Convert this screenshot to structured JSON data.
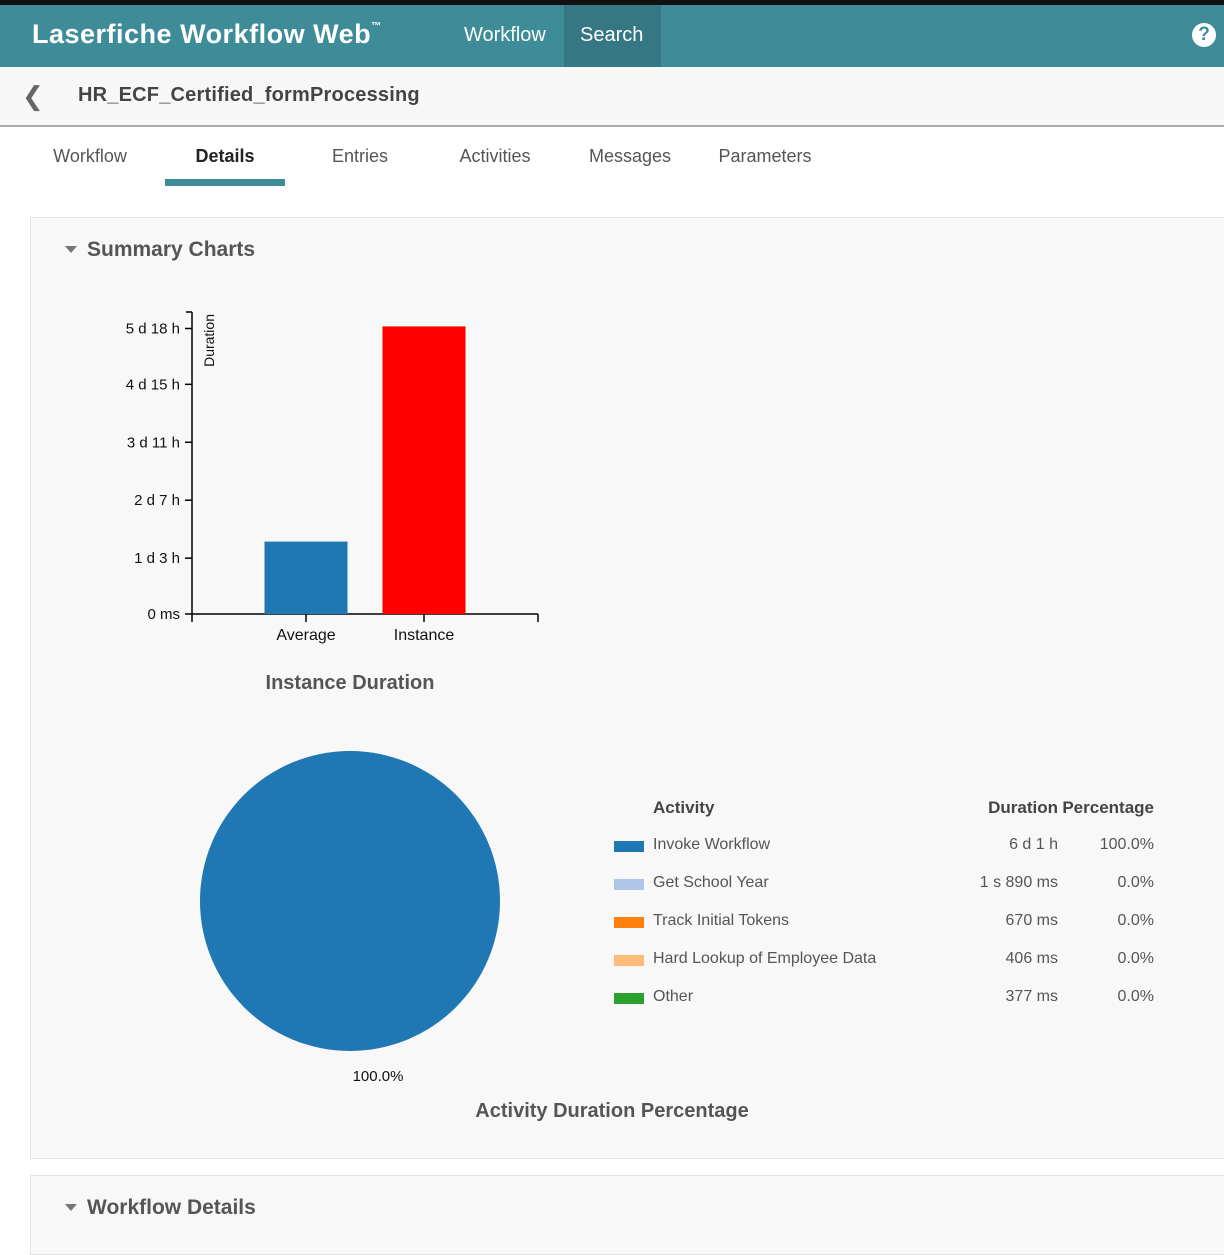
{
  "app": {
    "brand": "Laserfiche Workflow Web",
    "brand_mark": "™",
    "nav": [
      {
        "label": "Workflow",
        "active": false
      },
      {
        "label": "Search",
        "active": true
      }
    ],
    "help_glyph": "?",
    "help_icon": "help-circle-icon"
  },
  "header": {
    "back_glyph": "❮",
    "back_icon": "back-chevron-icon",
    "title": "HR_ECF_Certified_formProcessing"
  },
  "tabs": [
    {
      "label": "Workflow",
      "active": false
    },
    {
      "label": "Details",
      "active": true
    },
    {
      "label": "Entries",
      "active": false
    },
    {
      "label": "Activities",
      "active": false
    },
    {
      "label": "Messages",
      "active": false
    },
    {
      "label": "Parameters",
      "active": false
    }
  ],
  "summary": {
    "title": "Summary Charts",
    "expanded": true
  },
  "workflow_details": {
    "title": "Workflow Details",
    "expanded": true
  },
  "colors": {
    "accent": "#3f8c99",
    "bar_average": "#1f77b4",
    "bar_instance": "#ff0000"
  },
  "chart_data": [
    {
      "type": "bar",
      "title": "Instance Duration",
      "ylabel": "Duration",
      "categories": [
        "Average",
        "Instance"
      ],
      "values_hours": [
        35,
        139
      ],
      "ylim_hours": [
        0,
        145
      ],
      "yticks_hours": [
        0,
        27,
        55,
        83,
        111,
        138
      ],
      "ytick_labels": [
        "0 ms",
        "1 d 3 h",
        "2 d 7 h",
        "3 d 11 h",
        "4 d 15 h",
        "5 d 18 h"
      ],
      "colors": [
        "#1f77b4",
        "#ff0000"
      ],
      "grid": false
    },
    {
      "type": "pie",
      "title": "Activity Duration Percentage",
      "slice_label": "100.0%",
      "legend_headers": {
        "activity": "Activity",
        "duration": "Duration",
        "percentage": "Percentage"
      },
      "legend_placement": "right",
      "slices": [
        {
          "label": "Invoke Workflow",
          "duration": "6 d 1 h",
          "percentage": "100.0%",
          "value": 100.0,
          "color": "#1f77b4"
        },
        {
          "label": "Get School Year",
          "duration": "1 s 890 ms",
          "percentage": "0.0%",
          "value": 0.0,
          "color": "#aec7e8"
        },
        {
          "label": "Track Initial Tokens",
          "duration": "670 ms",
          "percentage": "0.0%",
          "value": 0.0,
          "color": "#ff7f0e"
        },
        {
          "label": "Hard Lookup of Employee Data",
          "duration": "406 ms",
          "percentage": "0.0%",
          "value": 0.0,
          "color": "#ffbb78"
        },
        {
          "label": "Other",
          "duration": "377 ms",
          "percentage": "0.0%",
          "value": 0.0,
          "color": "#2ca02c"
        }
      ]
    }
  ]
}
